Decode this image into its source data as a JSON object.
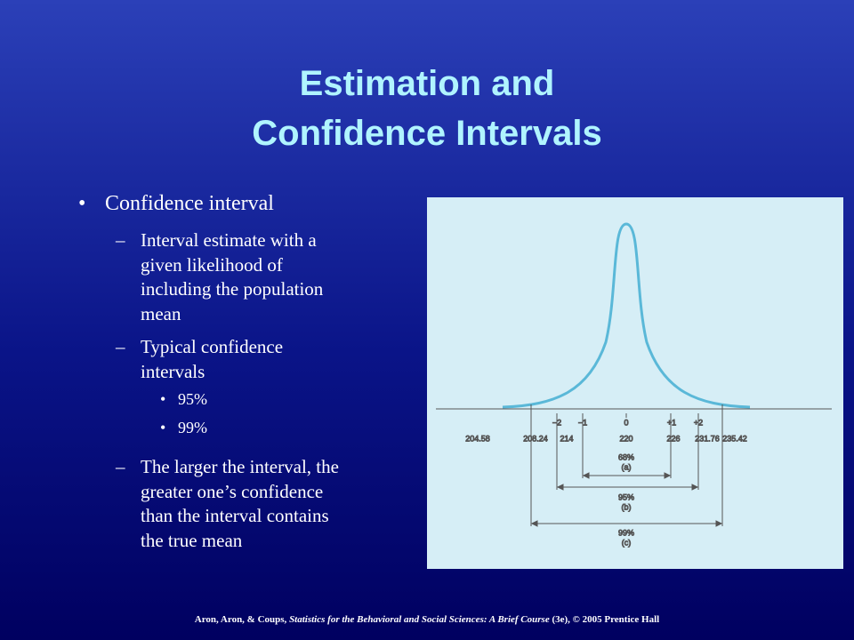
{
  "title": {
    "lines": [
      "Estimation and",
      "Confidence Intervals"
    ]
  },
  "bullets": [
    {
      "text": "Confidence interval",
      "items": [
        {
          "lines": [
            "Interval estimate with a",
            "given likelihood of",
            "including the population",
            "mean"
          ]
        },
        {
          "lines": [
            "Typical confidence",
            "intervals"
          ],
          "items": [
            "95%",
            "99%"
          ]
        },
        {
          "lines": [
            "The larger the interval, the",
            "greater one’s confidence",
            "than the interval contains",
            "the true mean"
          ]
        }
      ]
    }
  ],
  "figure": {
    "z_labels": [
      "−2",
      "−1",
      "0",
      "+1",
      "+2"
    ],
    "value_labels": [
      "204.58",
      "208.24",
      "214",
      "220",
      "226",
      "231.76",
      "235.42"
    ],
    "intervals": [
      {
        "percent": "68%",
        "tag": "(a)"
      },
      {
        "percent": "95%",
        "tag": "(b)"
      },
      {
        "percent": "99%",
        "tag": "(c)"
      }
    ]
  },
  "footer": {
    "authors": "Aron, Aron, & Coups,",
    "book": "Statistics for the Behavioral and Social Sciences: A Brief Course",
    "rest": "(3e),  © 2005 Prentice Hall"
  }
}
